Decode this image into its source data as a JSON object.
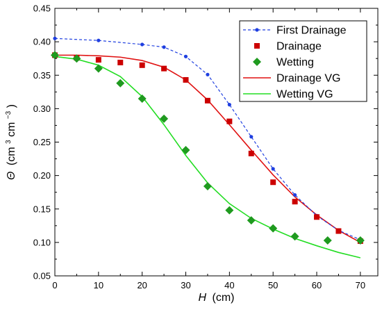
{
  "chart_data": {
    "type": "line",
    "title": "",
    "xlabel": {
      "var": "H",
      "unit": "(cm)"
    },
    "ylabel": {
      "var": "Θ",
      "unit_open": "(cm",
      "sup1": "3",
      "mid": "cm",
      "sup2": "−3",
      "unit_close": ")"
    },
    "xlim": [
      0,
      74
    ],
    "ylim": [
      0.05,
      0.45
    ],
    "x_ticks": [
      "0",
      "10",
      "20",
      "30",
      "40",
      "50",
      "60",
      "70"
    ],
    "y_ticks": [
      "0.05",
      "0.10",
      "0.15",
      "0.20",
      "0.25",
      "0.30",
      "0.35",
      "0.40",
      "0.45"
    ],
    "grid": false,
    "legend_position": "top-right",
    "series": [
      {
        "name": "First Drainage",
        "style": "dashed-line-with-dots",
        "color": "#1f3fe0",
        "x": [
          0,
          10,
          20,
          25,
          30,
          35,
          40,
          45,
          50,
          55,
          60,
          65,
          70
        ],
        "y": [
          0.405,
          0.402,
          0.396,
          0.392,
          0.378,
          0.351,
          0.306,
          0.258,
          0.21,
          0.171,
          0.14,
          0.118,
          0.104
        ]
      },
      {
        "name": "Drainage",
        "style": "square-markers",
        "color": "#cc0000",
        "x": [
          0,
          5,
          10,
          15,
          20,
          25,
          30,
          35,
          40,
          45,
          50,
          55,
          60,
          65,
          70
        ],
        "y": [
          0.38,
          0.376,
          0.373,
          0.369,
          0.365,
          0.36,
          0.343,
          0.312,
          0.281,
          0.233,
          0.19,
          0.161,
          0.138,
          0.117,
          0.102
        ]
      },
      {
        "name": "Wetting",
        "style": "diamond-markers",
        "color": "#1f9a1f",
        "x": [
          0,
          5,
          10,
          15,
          20,
          25,
          30,
          35,
          40,
          45,
          50,
          55,
          62.5,
          70
        ],
        "y": [
          0.38,
          0.375,
          0.36,
          0.338,
          0.315,
          0.285,
          0.238,
          0.184,
          0.148,
          0.133,
          0.121,
          0.109,
          0.103,
          0.103
        ]
      },
      {
        "name": "Drainage VG",
        "style": "solid-line",
        "color": "#e01010",
        "x": [
          0,
          5,
          10,
          15,
          20,
          25,
          30,
          35,
          40,
          45,
          50,
          55,
          60,
          65,
          70
        ],
        "y": [
          0.38,
          0.38,
          0.379,
          0.377,
          0.372,
          0.362,
          0.343,
          0.313,
          0.276,
          0.238,
          0.201,
          0.168,
          0.141,
          0.118,
          0.1
        ]
      },
      {
        "name": "Wetting VG",
        "style": "solid-line",
        "color": "#22dd22",
        "x": [
          0,
          5,
          10,
          15,
          20,
          25,
          30,
          35,
          40,
          45,
          50,
          55,
          60,
          65,
          70
        ],
        "y": [
          0.378,
          0.374,
          0.365,
          0.348,
          0.318,
          0.276,
          0.23,
          0.189,
          0.158,
          0.136,
          0.12,
          0.106,
          0.095,
          0.085,
          0.077
        ]
      }
    ]
  }
}
